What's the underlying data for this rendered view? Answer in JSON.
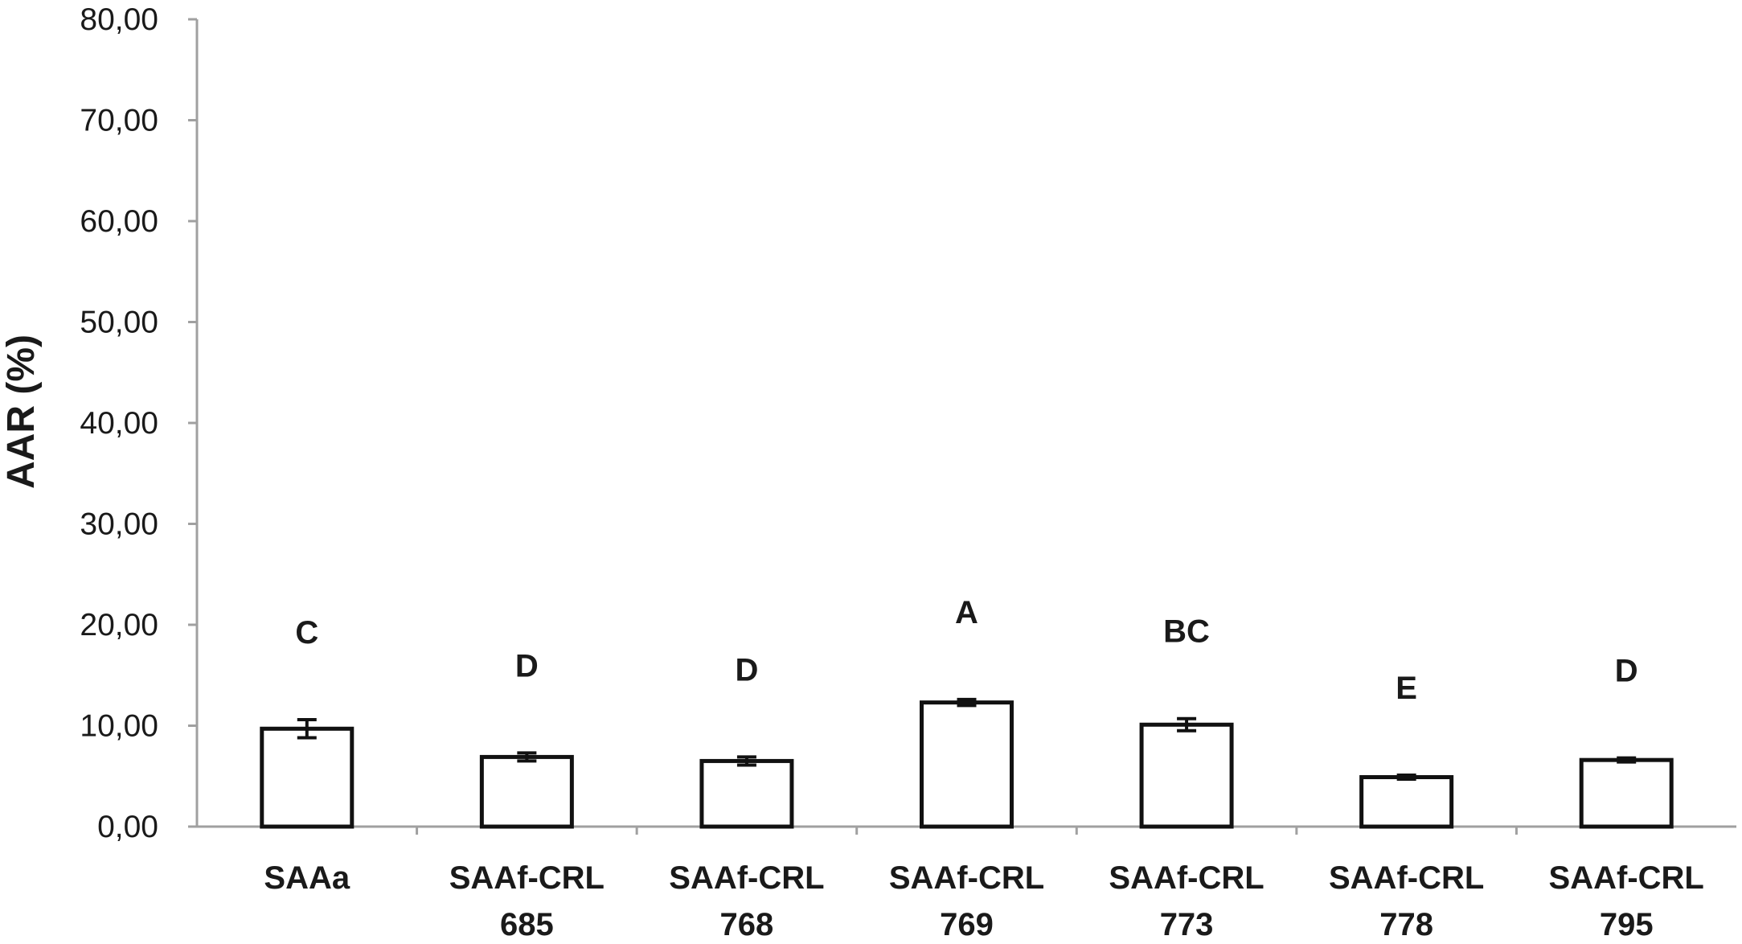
{
  "chart_data": {
    "type": "bar",
    "title": "",
    "xlabel": "",
    "ylabel": "AAR (%)",
    "ylim": [
      0,
      80
    ],
    "yticks": [
      "0,00",
      "10,00",
      "20,00",
      "30,00",
      "40,00",
      "50,00",
      "60,00",
      "70,00",
      "80,00"
    ],
    "grid": false,
    "categories": [
      [
        "SAAa"
      ],
      [
        "SAAf-CRL",
        "685"
      ],
      [
        "SAAf-CRL",
        "768"
      ],
      [
        "SAAf-CRL",
        "769"
      ],
      [
        "SAAf-CRL",
        "773"
      ],
      [
        "SAAf-CRL",
        "778"
      ],
      [
        "SAAf-CRL",
        "795"
      ]
    ],
    "values": [
      9.7,
      6.9,
      6.5,
      12.3,
      10.1,
      4.9,
      6.6
    ],
    "errors": [
      0.9,
      0.4,
      0.4,
      0.3,
      0.6,
      0.2,
      0.2
    ],
    "significance_labels": [
      "C",
      "D",
      "D",
      "A",
      "BC",
      "E",
      "D"
    ]
  }
}
